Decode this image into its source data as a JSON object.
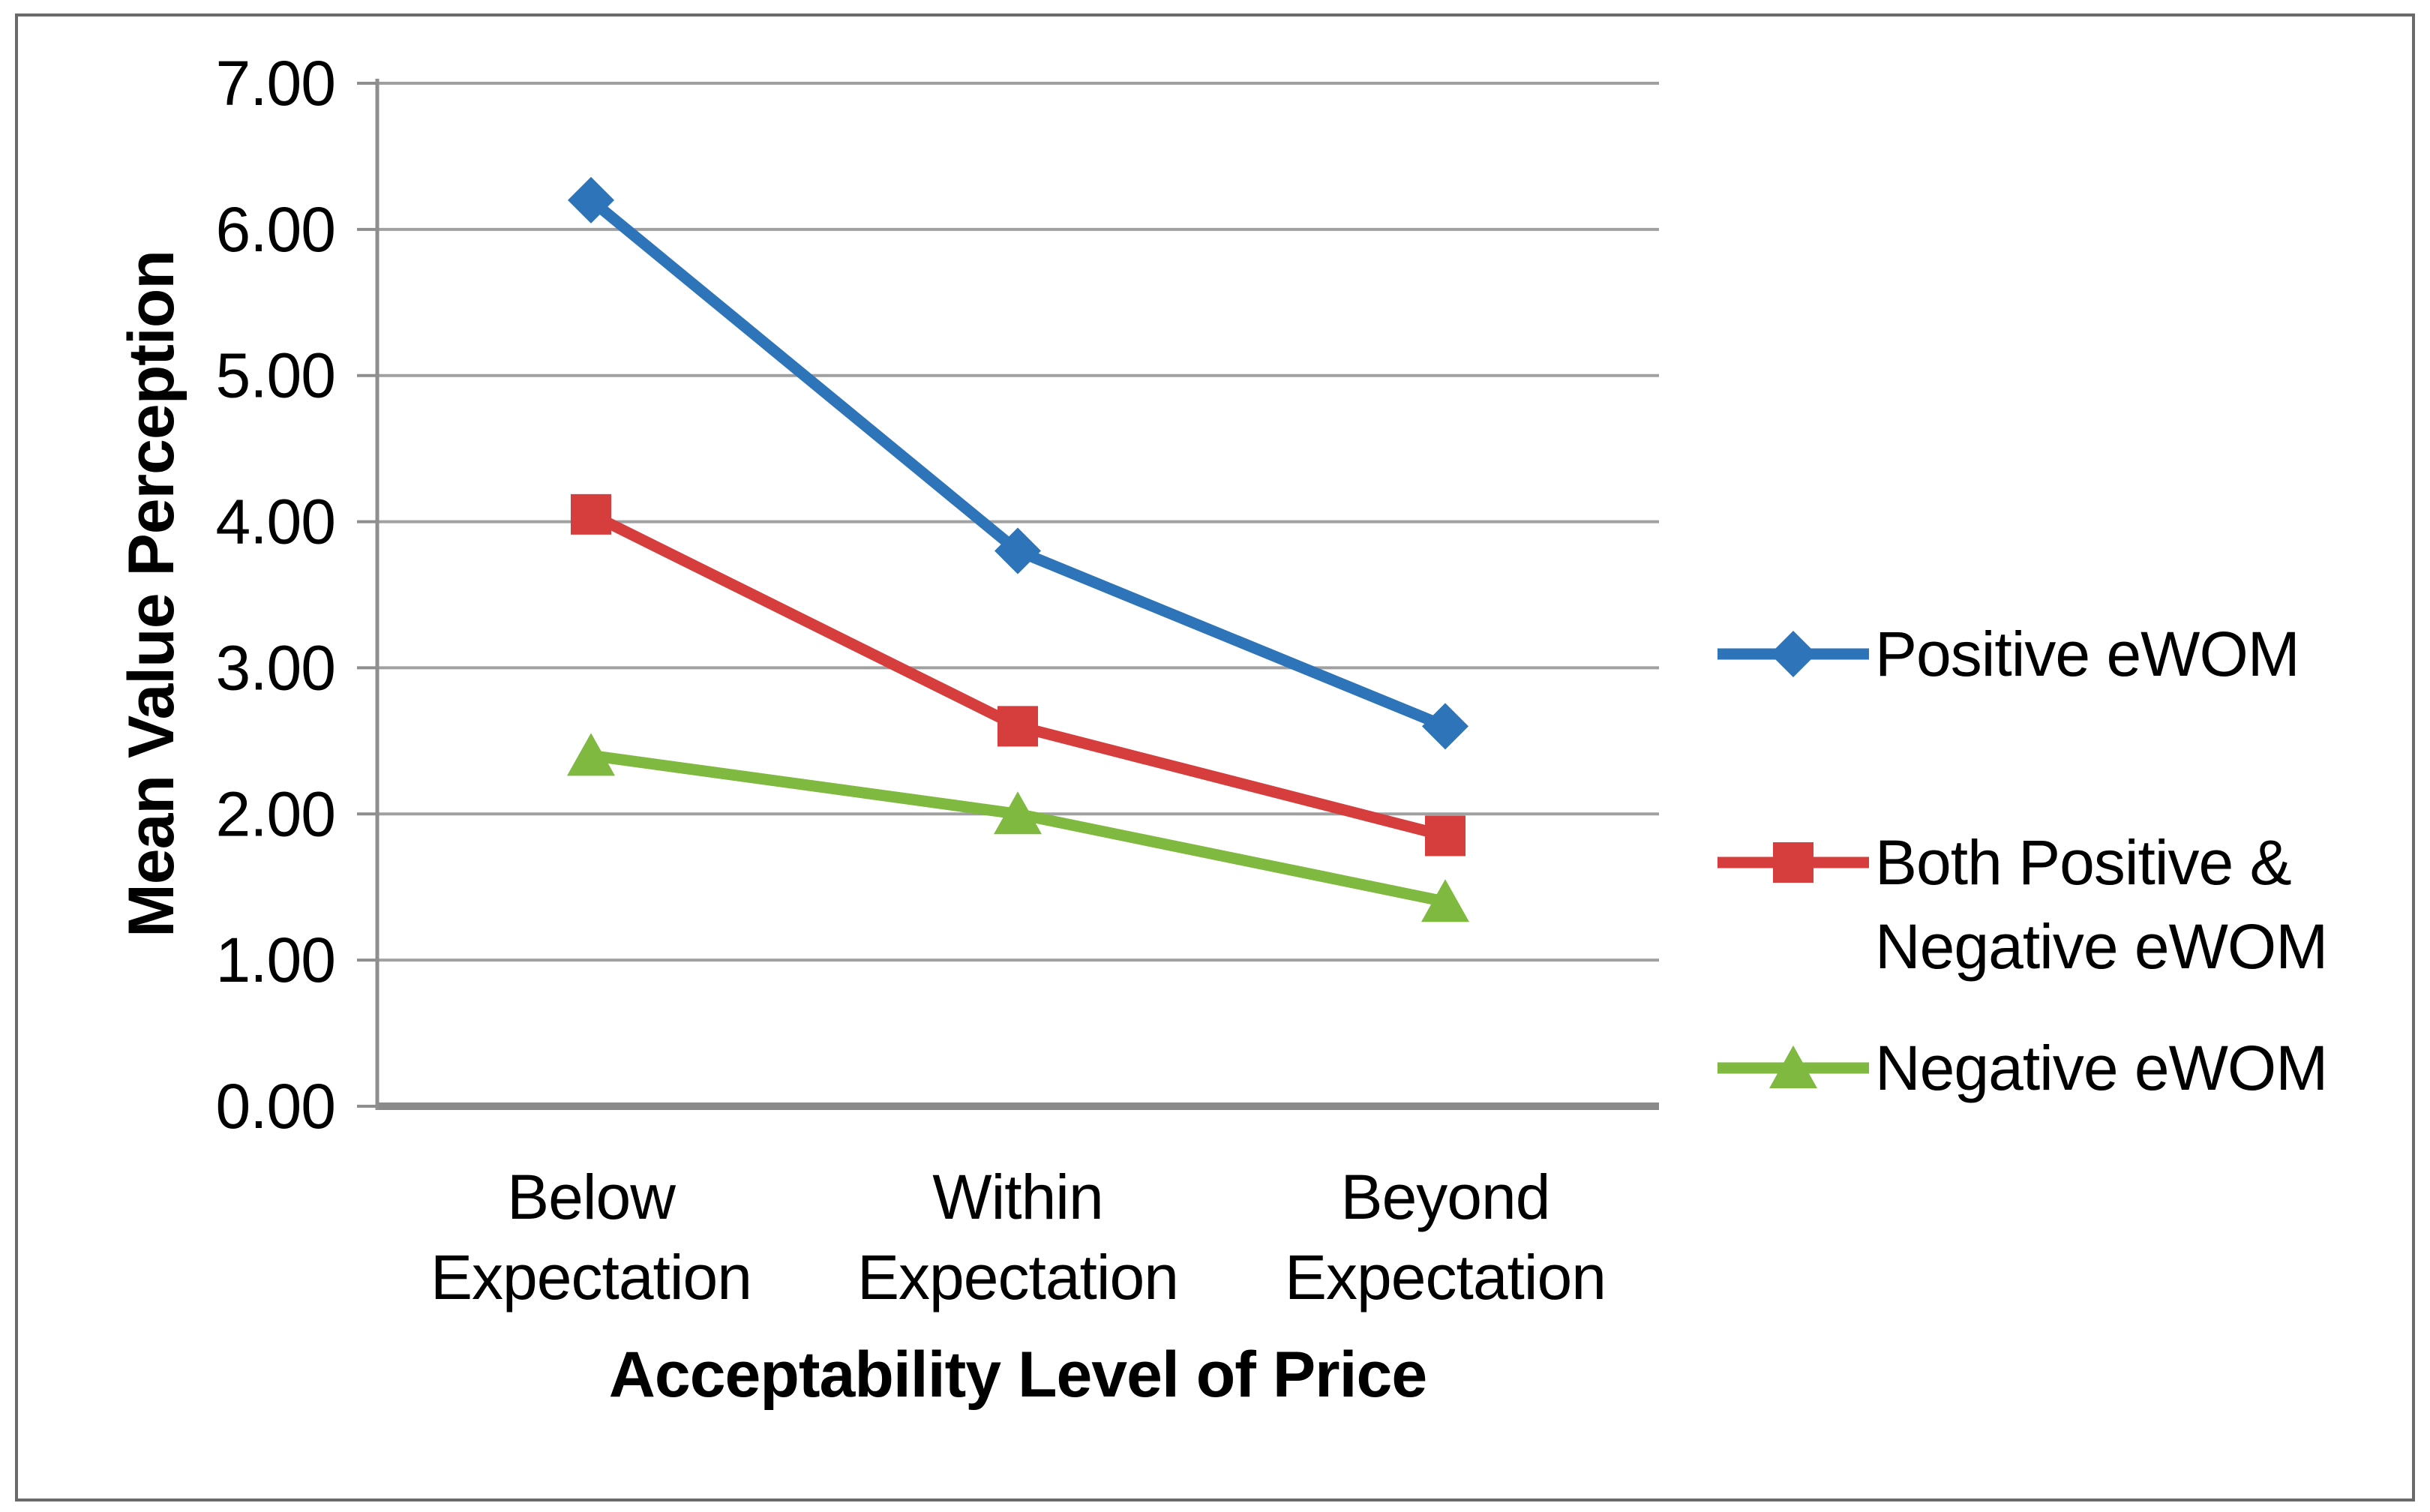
{
  "chart_data": {
    "type": "line",
    "title": "",
    "xlabel": "Acceptability Level of Price",
    "ylabel": "Mean Value Perception",
    "categories": [
      "Below Expectation",
      "Within Expectation",
      "Beyond Expectation"
    ],
    "category_lines": [
      [
        "Below",
        "Expectation"
      ],
      [
        "Within",
        "Expectation"
      ],
      [
        "Beyond",
        "Expectation"
      ]
    ],
    "y_ticks": [
      "0.00",
      "1.00",
      "2.00",
      "3.00",
      "4.00",
      "5.00",
      "6.00",
      "7.00"
    ],
    "axis": {
      "ymin": 0,
      "ymax": 7,
      "ystep": 1,
      "grid": true,
      "legend_position": "right"
    },
    "series": [
      {
        "name": "Positive eWOM",
        "legend_lines": [
          "Positive eWOM"
        ],
        "marker": "diamond",
        "color": "#2E74B8",
        "values": [
          6.2,
          3.8,
          2.6
        ]
      },
      {
        "name": "Both Positive & Negative eWOM",
        "legend_lines": [
          "Both Positive &",
          "Negative eWOM"
        ],
        "marker": "square",
        "color": "#D63D3D",
        "values": [
          4.05,
          2.6,
          1.85
        ]
      },
      {
        "name": "Negative eWOM",
        "legend_lines": [
          "Negative eWOM"
        ],
        "marker": "triangle",
        "color": "#7FB93F",
        "values": [
          2.4,
          2.0,
          1.4
        ]
      }
    ],
    "colors": {
      "gridline": "#A0A0A0",
      "axis": "#8E8E8E",
      "baseline": "#8A8A8A",
      "frame": "#6A6A6A",
      "text": "#000000",
      "background": "#FFFFFF"
    }
  }
}
